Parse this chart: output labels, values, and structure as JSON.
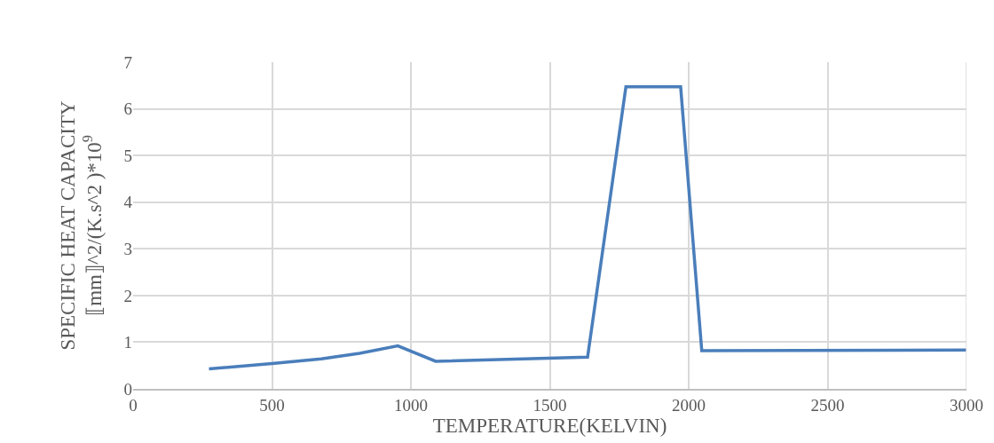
{
  "chart_data": {
    "type": "line",
    "xlabel": "TEMPERATURE(KELVIN)",
    "ylabel": "SPECIFIC HEAT CAPACITY\n⟦mm⟧^2/(K.s^2 )*10$^{9}$",
    "x": [
      273,
      500,
      677,
      815,
      953,
      1089,
      1636,
      1774,
      1971,
      2047,
      3000
    ],
    "series": [
      {
        "color": "#4a7ebb",
        "values": [
          0.43,
          0.54,
          0.64,
          0.76,
          0.92,
          0.59,
          0.68,
          6.47,
          6.47,
          0.82,
          0.83
        ]
      }
    ],
    "xlim": [
      0,
      3000
    ],
    "xticks": [
      0,
      500,
      1000,
      1500,
      2000,
      2500,
      3000
    ],
    "ylim": [
      0,
      7
    ],
    "yticks": [
      0,
      1,
      2,
      3,
      4,
      5,
      6,
      7
    ],
    "grid": true,
    "legend": false,
    "marker": "none",
    "line_style": "solid"
  }
}
